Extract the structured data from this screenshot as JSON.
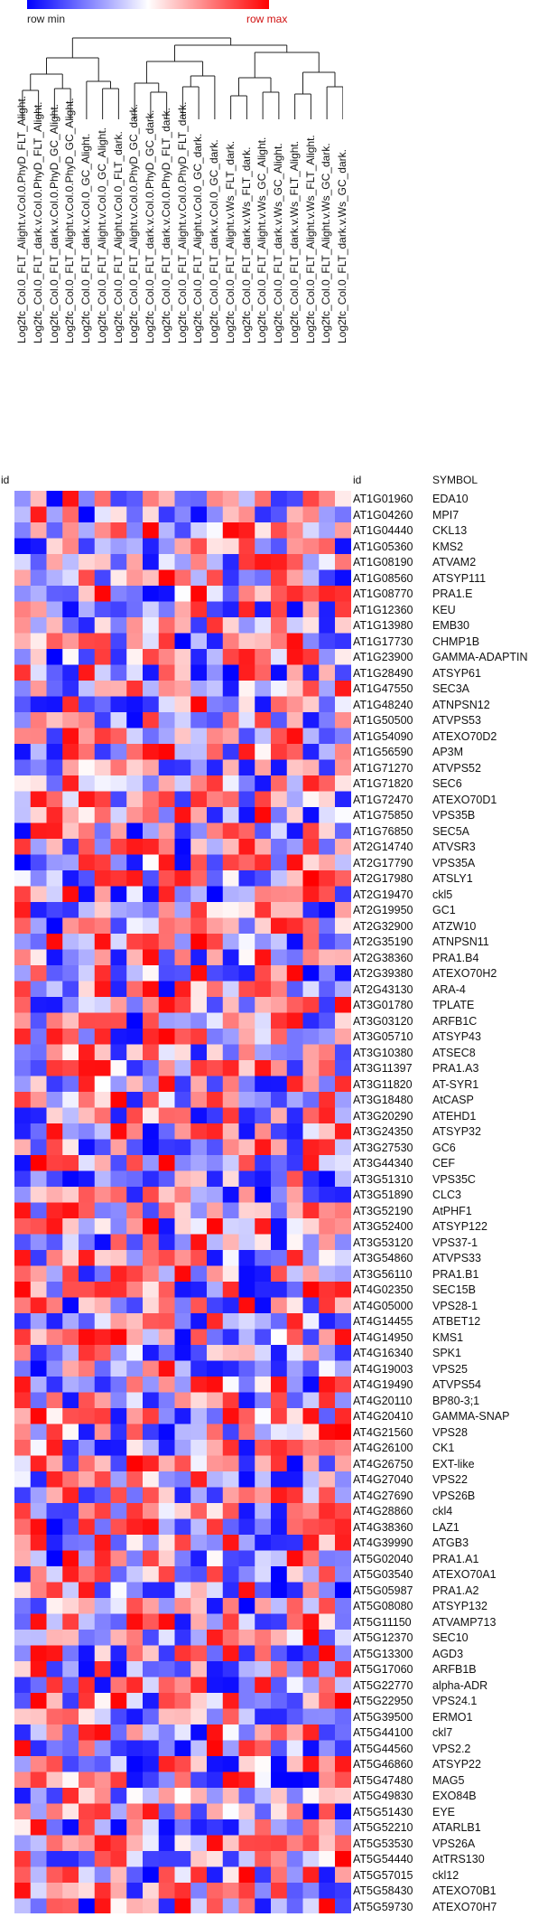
{
  "legend": {
    "min_label": "row min",
    "max_label": "row max",
    "min_color": "#0000ff",
    "mid_color": "#ffffff",
    "max_color": "#ff0000"
  },
  "headers": {
    "id_left": "id",
    "id": "id",
    "symbol": "SYMBOL"
  },
  "chart_data": {
    "type": "heatmap",
    "title": "",
    "xlabel": "",
    "ylabel": "",
    "color_scale": "row-normalized blue-white-red",
    "columns": [
      "Log2fc_Col.0_FLT_Alight.v.Col.0.PhyD_FLT_Alight.",
      "Log2fc_Col.0_FLT_dark.v.Col.0.PhyD_FLT_Alight.",
      "Log2fc_Col.0_FLT_dark.v.Col.0.PhyD_GC_Alight.",
      "Log2fc_Col.0_FLT_Alight.v.Col.0.PhyD_GC_Alight.",
      "Log2fc_Col.0_FLT_dark.v.Col.0_GC_Alight.",
      "Log2fc_Col.0_FLT_Alight.v.Col.0_GC_Alight.",
      "Log2fc_Col.0_FLT_Alight.v.Col.0_FLT_dark.",
      "Log2fc_Col.0_FLT_Alight.v.Col.0.PhyD_GC_dark.",
      "Log2fc_Col.0_FLT_dark.v.Col.0.PhyD_GC_dark.",
      "Log2fc_Col.0_FLT_dark.v.Col.0.PhyD_FLT_dark.",
      "Log2fc_Col.0_FLT_Alight.v.Col.0.PhyD_FLT_dark.",
      "Log2fc_Col.0_FLT_Alight.v.Col.0_GC_dark.",
      "Log2fc_Col.0_FLT_dark.v.Col.0_GC_dark.",
      "Log2fc_Col.0_FLT_Alight.v.Ws_FLT_dark.",
      "Log2fc_Col.0_FLT_dark.v.Ws_FLT_dark.",
      "Log2fc_Col.0_FLT_Alight.v.Ws_GC_Alight.",
      "Log2fc_Col.0_FLT_dark.v.Ws_GC_Alight.",
      "Log2fc_Col.0_FLT_dark.v.Ws_FLT_Alight.",
      "Log2fc_Col.0_FLT_Alight.v.Ws_FLT_Alight.",
      "Log2fc_Col.0_FLT_Alight.v.Ws_GC_dark.",
      "Log2fc_Col.0_FLT_dark.v.Ws_GC_dark."
    ],
    "rows": [
      {
        "id": "AT1G01960",
        "symbol": "EDA10"
      },
      {
        "id": "AT1G04260",
        "symbol": "MPI7"
      },
      {
        "id": "AT1G04440",
        "symbol": "CKL13"
      },
      {
        "id": "AT1G05360",
        "symbol": "KMS2"
      },
      {
        "id": "AT1G08190",
        "symbol": "ATVAM2"
      },
      {
        "id": "AT1G08560",
        "symbol": "ATSYP111"
      },
      {
        "id": "AT1G08770",
        "symbol": "PRA1.E"
      },
      {
        "id": "AT1G12360",
        "symbol": "KEU"
      },
      {
        "id": "AT1G13980",
        "symbol": "EMB30"
      },
      {
        "id": "AT1G17730",
        "symbol": "CHMP1B"
      },
      {
        "id": "AT1G23900",
        "symbol": "GAMMA-ADAPTIN"
      },
      {
        "id": "AT1G28490",
        "symbol": "ATSYP61"
      },
      {
        "id": "AT1G47550",
        "symbol": "SEC3A"
      },
      {
        "id": "AT1G48240",
        "symbol": "ATNPSN12"
      },
      {
        "id": "AT1G50500",
        "symbol": "ATVPS53"
      },
      {
        "id": "AT1G54090",
        "symbol": "ATEXO70D2"
      },
      {
        "id": "AT1G56590",
        "symbol": "AP3M"
      },
      {
        "id": "AT1G71270",
        "symbol": "ATVPS52"
      },
      {
        "id": "AT1G71820",
        "symbol": "SEC6"
      },
      {
        "id": "AT1G72470",
        "symbol": "ATEXO70D1"
      },
      {
        "id": "AT1G75850",
        "symbol": "VPS35B"
      },
      {
        "id": "AT1G76850",
        "symbol": "SEC5A"
      },
      {
        "id": "AT2G14740",
        "symbol": "ATVSR3"
      },
      {
        "id": "AT2G17790",
        "symbol": "VPS35A"
      },
      {
        "id": "AT2G17980",
        "symbol": "ATSLY1"
      },
      {
        "id": "AT2G19470",
        "symbol": "ckl5"
      },
      {
        "id": "AT2G19950",
        "symbol": "GC1"
      },
      {
        "id": "AT2G32900",
        "symbol": "ATZW10"
      },
      {
        "id": "AT2G35190",
        "symbol": "ATNPSN11"
      },
      {
        "id": "AT2G38360",
        "symbol": "PRA1.B4"
      },
      {
        "id": "AT2G39380",
        "symbol": "ATEXO70H2"
      },
      {
        "id": "AT2G43130",
        "symbol": "ARA-4"
      },
      {
        "id": "AT3G01780",
        "symbol": "TPLATE"
      },
      {
        "id": "AT3G03120",
        "symbol": "ARFB1C"
      },
      {
        "id": "AT3G05710",
        "symbol": "ATSYP43"
      },
      {
        "id": "AT3G10380",
        "symbol": "ATSEC8"
      },
      {
        "id": "AT3G11397",
        "symbol": "PRA1.A3"
      },
      {
        "id": "AT3G11820",
        "symbol": "AT-SYR1"
      },
      {
        "id": "AT3G18480",
        "symbol": "AtCASP"
      },
      {
        "id": "AT3G20290",
        "symbol": "ATEHD1"
      },
      {
        "id": "AT3G24350",
        "symbol": "ATSYP32"
      },
      {
        "id": "AT3G27530",
        "symbol": "GC6"
      },
      {
        "id": "AT3G44340",
        "symbol": "CEF"
      },
      {
        "id": "AT3G51310",
        "symbol": "VPS35C"
      },
      {
        "id": "AT3G51890",
        "symbol": "CLC3"
      },
      {
        "id": "AT3G52190",
        "symbol": "AtPHF1"
      },
      {
        "id": "AT3G52400",
        "symbol": "ATSYP122"
      },
      {
        "id": "AT3G53120",
        "symbol": "VPS37-1"
      },
      {
        "id": "AT3G54860",
        "symbol": "ATVPS33"
      },
      {
        "id": "AT3G56110",
        "symbol": "PRA1.B1"
      },
      {
        "id": "AT4G02350",
        "symbol": "SEC15B"
      },
      {
        "id": "AT4G05000",
        "symbol": "VPS28-1"
      },
      {
        "id": "AT4G14455",
        "symbol": "ATBET12"
      },
      {
        "id": "AT4G14950",
        "symbol": "KMS1"
      },
      {
        "id": "AT4G16340",
        "symbol": "SPK1"
      },
      {
        "id": "AT4G19003",
        "symbol": "VPS25"
      },
      {
        "id": "AT4G19490",
        "symbol": "ATVPS54"
      },
      {
        "id": "AT4G20110",
        "symbol": "BP80-3;1"
      },
      {
        "id": "AT4G20410",
        "symbol": "GAMMA-SNAP"
      },
      {
        "id": "AT4G21560",
        "symbol": "VPS28"
      },
      {
        "id": "AT4G26100",
        "symbol": "CK1"
      },
      {
        "id": "AT4G26750",
        "symbol": "EXT-like"
      },
      {
        "id": "AT4G27040",
        "symbol": "VPS22"
      },
      {
        "id": "AT4G27690",
        "symbol": "VPS26B"
      },
      {
        "id": "AT4G28860",
        "symbol": "ckl4"
      },
      {
        "id": "AT4G38360",
        "symbol": "LAZ1"
      },
      {
        "id": "AT4G39990",
        "symbol": "ATGB3"
      },
      {
        "id": "AT5G02040",
        "symbol": "PRA1.A1"
      },
      {
        "id": "AT5G03540",
        "symbol": "ATEXO70A1"
      },
      {
        "id": "AT5G05987",
        "symbol": "PRA1.A2"
      },
      {
        "id": "AT5G08080",
        "symbol": "ATSYP132"
      },
      {
        "id": "AT5G11150",
        "symbol": "ATVAMP713"
      },
      {
        "id": "AT5G12370",
        "symbol": "SEC10"
      },
      {
        "id": "AT5G13300",
        "symbol": "AGD3"
      },
      {
        "id": "AT5G17060",
        "symbol": "ARFB1B"
      },
      {
        "id": "AT5G22770",
        "symbol": "alpha-ADR"
      },
      {
        "id": "AT5G22950",
        "symbol": "VPS24.1"
      },
      {
        "id": "AT5G39500",
        "symbol": "ERMO1"
      },
      {
        "id": "AT5G44100",
        "symbol": "ckl7"
      },
      {
        "id": "AT5G44560",
        "symbol": "VPS2.2"
      },
      {
        "id": "AT5G46860",
        "symbol": "ATSYP22"
      },
      {
        "id": "AT5G47480",
        "symbol": "MAG5"
      },
      {
        "id": "AT5G49830",
        "symbol": "EXO84B"
      },
      {
        "id": "AT5G51430",
        "symbol": "EYE"
      },
      {
        "id": "AT5G52210",
        "symbol": "ATARLB1"
      },
      {
        "id": "AT5G53530",
        "symbol": "VPS26A"
      },
      {
        "id": "AT5G54440",
        "symbol": "AtTRS130"
      },
      {
        "id": "AT5G57015",
        "symbol": "ckl12"
      },
      {
        "id": "AT5G58430",
        "symbol": "ATEXO70B1"
      },
      {
        "id": "AT5G59730",
        "symbol": "ATEXO70H7"
      }
    ]
  }
}
